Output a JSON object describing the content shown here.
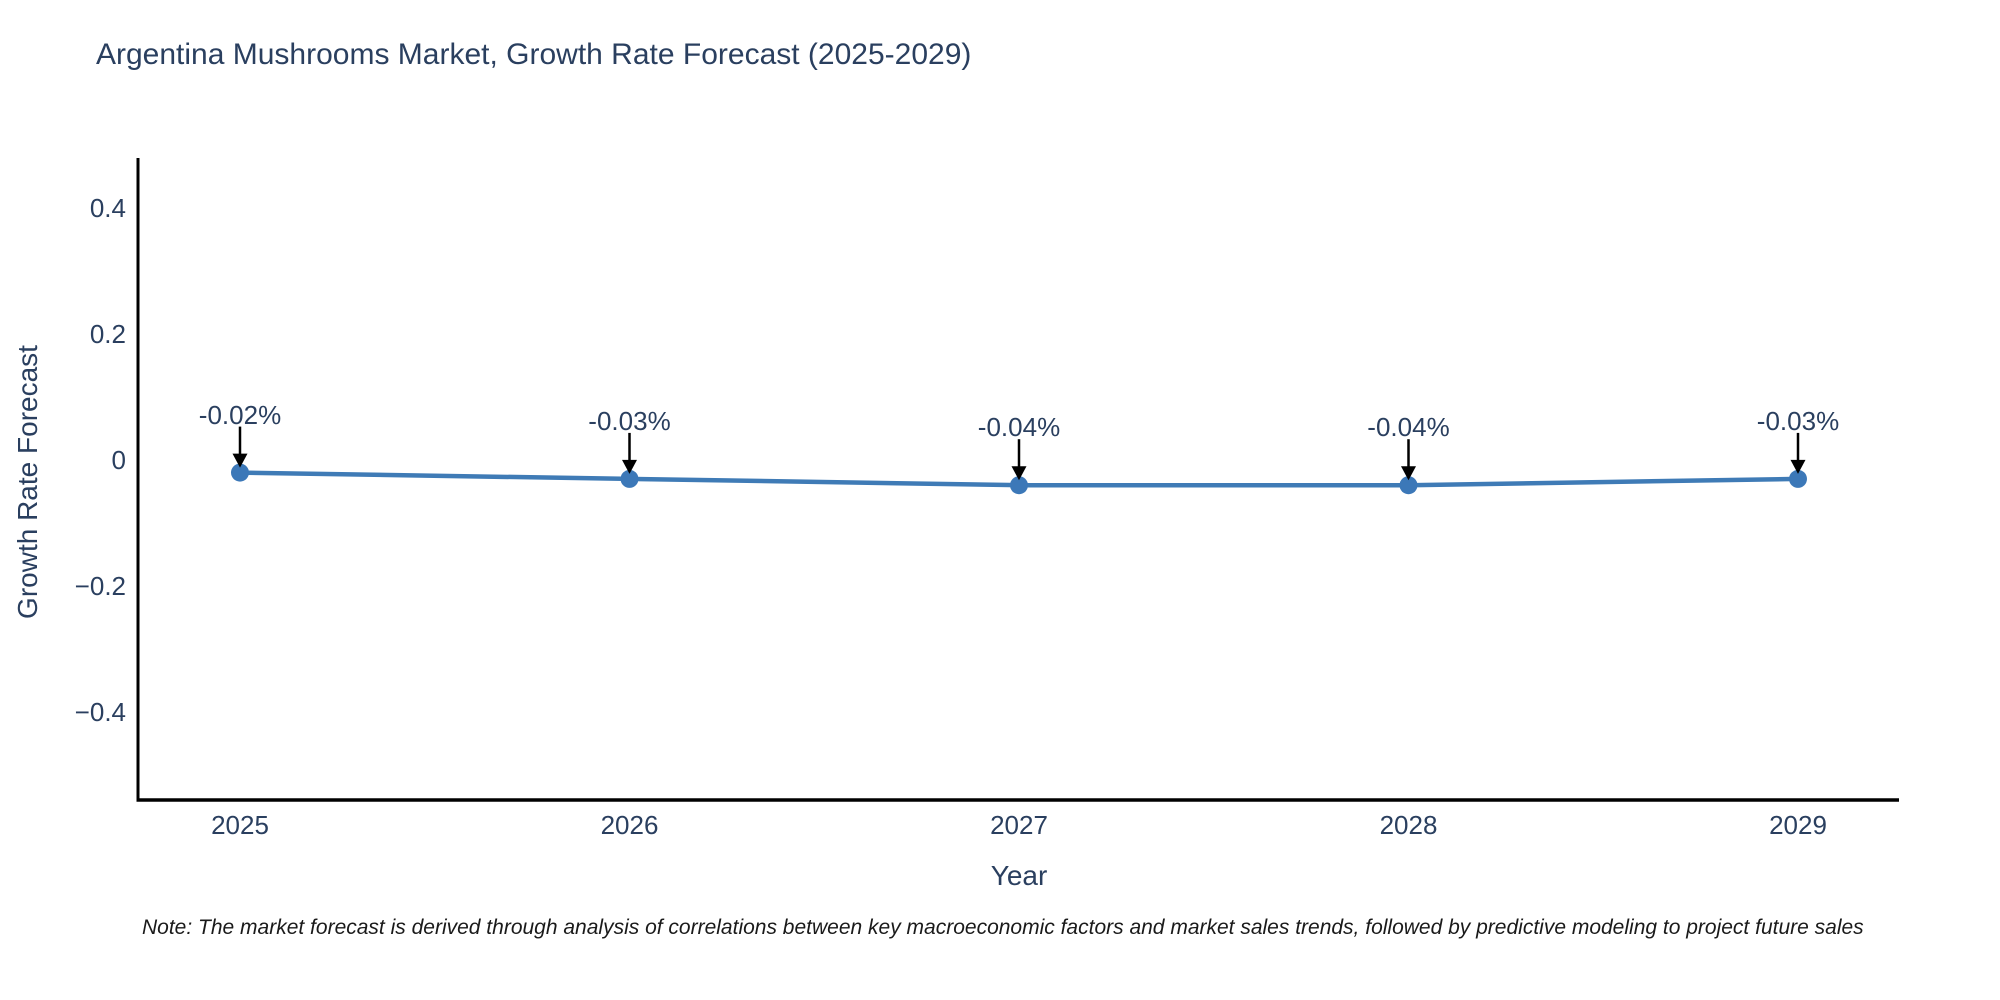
{
  "page": {
    "background": "#ffffff"
  },
  "header": {
    "title": "Argentina Mushrooms Market, Growth Rate Forecast (2025-2029)"
  },
  "footer": {
    "note": "Note: The market forecast is derived through analysis of correlations between key macroeconomic factors and market sales trends, followed by predictive modeling to project future sales"
  },
  "colors": {
    "text": "#2a3f5f",
    "line": "#3f7bb6",
    "marker": "#3c78b8",
    "axis": "#000000",
    "arrow": "#000000",
    "note_text": "#1a1a1a"
  },
  "chart_data": {
    "type": "line",
    "title": "Argentina Mushrooms Market, Growth Rate Forecast (2025-2029)",
    "xlabel": "Year",
    "ylabel": "Growth Rate Forecast",
    "categories": [
      "2025",
      "2026",
      "2027",
      "2028",
      "2029"
    ],
    "series": [
      {
        "name": "Growth Rate Forecast",
        "values": [
          -0.02,
          -0.03,
          -0.04,
          -0.04,
          -0.03
        ]
      }
    ],
    "point_labels": [
      "-0.02%",
      "-0.03%",
      "-0.04%",
      "-0.04%",
      "-0.03%"
    ],
    "yticks": [
      0.4,
      0.2,
      0,
      -0.2,
      -0.4
    ],
    "ytick_labels": [
      "0.4",
      "0.2",
      "0",
      "−0.2",
      "−0.4"
    ],
    "ylim": [
      -0.54,
      0.48
    ],
    "grid": false,
    "legend": "none",
    "annotations_have_arrows": true
  }
}
